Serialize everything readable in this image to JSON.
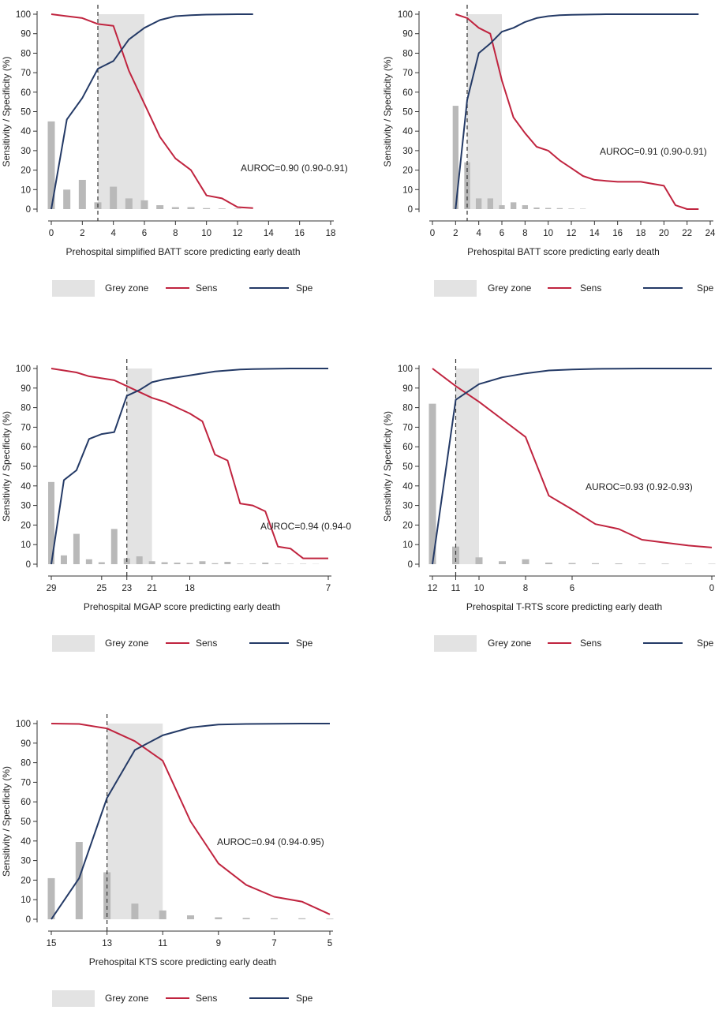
{
  "colors": {
    "sens": "#c0243f",
    "spe": "#243a66",
    "grey_zone": "#e3e3e3",
    "bars": "#b9b9b9",
    "axis": "#333333"
  },
  "legend": {
    "grey_zone": "Grey zone",
    "sens": "Sens",
    "spe": "Spe"
  },
  "chart_data": [
    {
      "type": "line",
      "ylabel": "Sensitivity / Specificity (%)",
      "xlabel": "Prehospital simplified BATT score predicting early death",
      "annotation": "AUROC=0.90 (0.90-0.91)",
      "xlim": [
        0,
        18
      ],
      "ylim": [
        0,
        100
      ],
      "xticks": [
        0,
        2,
        4,
        6,
        8,
        10,
        12,
        14,
        16,
        18
      ],
      "xtick_labels": [
        "0",
        "2",
        "4",
        "6",
        "8",
        "10",
        "12",
        "14",
        "16",
        "18"
      ],
      "yticks": [
        0,
        10,
        20,
        30,
        40,
        50,
        60,
        70,
        80,
        90,
        100
      ],
      "grey_zone": [
        3,
        6
      ],
      "cutoff": 3,
      "bars": {
        "x": [
          0,
          1,
          2,
          3,
          4,
          5,
          6,
          7,
          8,
          9,
          10,
          11,
          12
        ],
        "values": [
          45,
          10,
          15,
          3.5,
          11.5,
          5.5,
          4.5,
          2,
          1,
          1,
          0.5,
          0.3,
          0.2
        ]
      },
      "series": [
        {
          "name": "Sens",
          "x": [
            0,
            1,
            2,
            3,
            4,
            5,
            6,
            7,
            8,
            9,
            10,
            11,
            12,
            13
          ],
          "values": [
            100,
            99,
            98,
            95,
            94,
            71,
            54,
            37,
            26,
            20,
            7,
            5.5,
            1,
            0.5
          ]
        },
        {
          "name": "Spe",
          "x": [
            0,
            1,
            2,
            3,
            4,
            5,
            6,
            7,
            8,
            9,
            10,
            11,
            12,
            13
          ],
          "values": [
            0,
            46,
            57,
            72,
            76,
            87,
            93,
            97,
            99,
            99.5,
            99.8,
            99.9,
            100,
            100
          ]
        }
      ]
    },
    {
      "type": "line",
      "ylabel": "Sensitivity / Specificity (%)",
      "xlabel": "Prehospital BATT score predicting early death",
      "annotation": "AUROC=0.91 (0.90-0.91)",
      "xlim": [
        0,
        24
      ],
      "ylim": [
        0,
        100
      ],
      "xticks": [
        0,
        2,
        4,
        6,
        8,
        10,
        12,
        14,
        16,
        18,
        20,
        22,
        24
      ],
      "xtick_labels": [
        "0",
        "2",
        "4",
        "6",
        "8",
        "10",
        "12",
        "14",
        "16",
        "18",
        "20",
        "22",
        "24"
      ],
      "yticks": [
        0,
        10,
        20,
        30,
        40,
        50,
        60,
        70,
        80,
        90,
        100
      ],
      "grey_zone": [
        3,
        6
      ],
      "cutoff": 3,
      "bars": {
        "x": [
          2,
          3,
          4,
          5,
          6,
          7,
          8,
          9,
          10,
          11,
          12,
          13
        ],
        "values": [
          53,
          24,
          5.5,
          5.5,
          2,
          3.5,
          2,
          0.8,
          0.6,
          0.5,
          0.3,
          0.2
        ]
      },
      "series": [
        {
          "name": "Sens",
          "x": [
            2,
            3,
            4,
            5,
            6,
            7,
            8,
            9,
            10,
            11,
            12,
            13,
            14,
            15,
            16,
            17,
            18,
            19,
            20,
            21,
            22,
            23
          ],
          "values": [
            100,
            98,
            93,
            90,
            66,
            47,
            39,
            32,
            30,
            25,
            21,
            17,
            15,
            14.5,
            14,
            14,
            14,
            13,
            12,
            2,
            0,
            0
          ]
        },
        {
          "name": "Spe",
          "x": [
            2,
            3,
            4,
            5,
            6,
            7,
            8,
            9,
            10,
            11,
            12,
            13,
            14,
            15,
            16,
            17,
            18,
            19,
            20,
            21,
            22,
            23
          ],
          "values": [
            0,
            56,
            80,
            85,
            91,
            93,
            96,
            98,
            99,
            99.5,
            99.7,
            99.8,
            99.9,
            100,
            100,
            100,
            100,
            100,
            100,
            100,
            100,
            100
          ]
        }
      ]
    },
    {
      "type": "line",
      "ylabel": "Sensitivity / Specificity (%)",
      "xlabel": "Prehospital MGAP score predicting early death",
      "annotation": "AUROC=0.94 (0.94-0",
      "xlim": [
        29,
        7
      ],
      "ylim": [
        0,
        100
      ],
      "xticks": [
        29,
        25,
        23,
        21,
        18,
        7
      ],
      "xtick_labels": [
        "29",
        "25",
        "23",
        "21",
        "18",
        "7"
      ],
      "yticks": [
        0,
        10,
        20,
        30,
        40,
        50,
        60,
        70,
        80,
        90,
        100
      ],
      "grey_zone": [
        23,
        21
      ],
      "cutoff": 23,
      "bars": {
        "x": [
          29,
          28,
          27,
          26,
          25,
          24,
          23,
          22,
          21,
          20,
          19,
          18,
          17,
          16,
          15,
          14,
          13,
          12,
          11,
          10,
          9,
          8
        ],
        "values": [
          42,
          4.5,
          15.5,
          2.5,
          1,
          18,
          3,
          4,
          1.5,
          1,
          0.8,
          0.6,
          1.5,
          0.5,
          1.2,
          0.3,
          0.3,
          0.8,
          0.3,
          0.2,
          0.2,
          0.1
        ]
      },
      "series": [
        {
          "name": "Sens",
          "x": [
            29,
            28,
            27,
            26,
            25,
            24,
            23,
            22,
            21,
            20,
            19,
            18,
            17,
            16,
            15,
            14,
            13,
            12,
            11,
            10,
            9,
            8,
            7
          ],
          "values": [
            100,
            99,
            98,
            96,
            95,
            94,
            91,
            88,
            85,
            83,
            80,
            77,
            73,
            56,
            53,
            31,
            30,
            27,
            9,
            8,
            3,
            3,
            3
          ]
        },
        {
          "name": "Spe",
          "x": [
            29,
            28,
            27,
            26,
            25,
            24,
            23,
            22,
            21,
            20,
            19,
            18,
            17,
            16,
            15,
            14,
            13,
            12,
            11,
            10,
            9,
            8,
            7
          ],
          "values": [
            0,
            43,
            48,
            64,
            66.5,
            67.5,
            86,
            89,
            93,
            94.5,
            95.5,
            96.5,
            97.5,
            98.5,
            99,
            99.5,
            99.7,
            99.8,
            99.9,
            100,
            100,
            100,
            100
          ]
        }
      ]
    },
    {
      "type": "line",
      "ylabel": "Sensitivity / Specificity (%)",
      "xlabel": "Prehospital T-RTS score predicting early death",
      "annotation": "AUROC=0.93 (0.92-0.93)",
      "xlim": [
        12,
        0
      ],
      "ylim": [
        0,
        100
      ],
      "xticks": [
        12,
        11,
        10,
        8,
        6,
        0
      ],
      "xtick_labels": [
        "12",
        "11",
        "10",
        "8",
        "6",
        "0"
      ],
      "yticks": [
        0,
        10,
        20,
        30,
        40,
        50,
        60,
        70,
        80,
        90,
        100
      ],
      "grey_zone": [
        11,
        10
      ],
      "cutoff": 11,
      "bars": {
        "x": [
          12,
          11,
          10,
          9,
          8,
          7,
          6,
          5,
          4,
          3,
          2,
          1,
          0
        ],
        "values": [
          82,
          9,
          3.5,
          1.5,
          2.5,
          0.8,
          0.6,
          0.5,
          0.4,
          0.3,
          0.3,
          0.2,
          0.2
        ]
      },
      "series": [
        {
          "name": "Sens",
          "x": [
            12,
            11,
            10,
            9,
            8,
            7,
            6,
            5,
            4,
            3,
            2,
            1,
            0
          ],
          "values": [
            100,
            91,
            83,
            74,
            65,
            35,
            28,
            20.5,
            18,
            12.5,
            11,
            9.5,
            8.5
          ]
        },
        {
          "name": "Spe",
          "x": [
            12,
            11,
            10,
            9,
            8,
            7,
            6,
            5,
            4,
            3,
            2,
            1,
            0
          ],
          "values": [
            0,
            84,
            92,
            95.5,
            97.5,
            99,
            99.5,
            99.8,
            99.9,
            100,
            100,
            100,
            100
          ]
        }
      ]
    },
    {
      "type": "line",
      "ylabel": "Sensitivity / Specificity (%)",
      "xlabel": "Prehospital KTS score predicting early death",
      "annotation": "AUROC=0.94 (0.94-0.95)",
      "xlim": [
        15,
        5
      ],
      "ylim": [
        0,
        100
      ],
      "xticks": [
        15,
        13,
        11,
        9,
        7,
        5
      ],
      "xtick_labels": [
        "15",
        "13",
        "11",
        "9",
        "7",
        "5"
      ],
      "yticks": [
        0,
        10,
        20,
        30,
        40,
        50,
        60,
        70,
        80,
        90,
        100
      ],
      "grey_zone": [
        13,
        11
      ],
      "cutoff": 13,
      "bars": {
        "x": [
          15,
          14,
          13,
          12,
          11,
          10,
          9,
          8,
          7,
          6,
          5
        ],
        "values": [
          21,
          39.5,
          24,
          8,
          4.5,
          2,
          1,
          0.7,
          0.5,
          0.5,
          0.3
        ]
      },
      "series": [
        {
          "name": "Sens",
          "x": [
            15,
            14,
            13,
            12,
            11,
            10,
            9,
            8,
            7,
            6,
            5
          ],
          "values": [
            100,
            99.8,
            97.5,
            91,
            81,
            50,
            28.5,
            17.5,
            11.5,
            9,
            2.5
          ]
        },
        {
          "name": "Spe",
          "x": [
            15,
            14,
            13,
            12,
            11,
            10,
            9,
            8,
            7,
            6,
            5
          ],
          "values": [
            0,
            21,
            62,
            86.5,
            94,
            98,
            99.5,
            99.8,
            99.9,
            100,
            100
          ]
        }
      ]
    }
  ]
}
